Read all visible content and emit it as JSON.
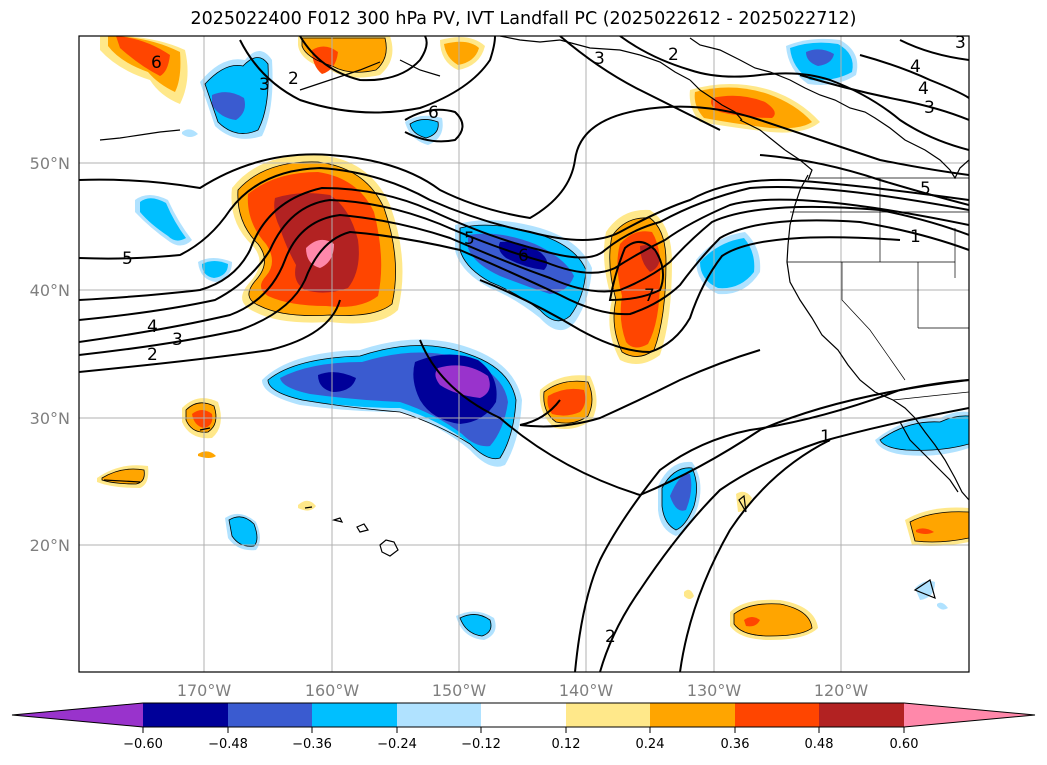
{
  "title": "2025022400 F012 300 hPa PV, IVT Landfall PC (2025022612 - 2025022712)",
  "map": {
    "latitude_labels": [
      "50°N",
      "40°N",
      "30°N",
      "20°N"
    ],
    "longitude_labels": [
      "170°W",
      "160°W",
      "150°W",
      "140°W",
      "130°W",
      "120°W"
    ],
    "contour_labels": [
      "6",
      "2",
      "3",
      "3",
      "4",
      "2",
      "3",
      "6",
      "4",
      "5",
      "1",
      "5",
      "5",
      "6",
      "4",
      "3",
      "2",
      "7",
      "1",
      "2",
      "3"
    ]
  },
  "colorbar": {
    "tick_labels": [
      "−0.60",
      "−0.48",
      "−0.36",
      "−0.24",
      "−0.12",
      "0.12",
      "0.24",
      "0.36",
      "0.48",
      "0.60"
    ],
    "colors": [
      "#9933cc",
      "#000099",
      "#3a5bd0",
      "#00bfff",
      "#b0e2ff",
      "#ffffff",
      "#ffe88a",
      "#ffa500",
      "#ff4500",
      "#b22222",
      "#ff88aa"
    ]
  }
}
